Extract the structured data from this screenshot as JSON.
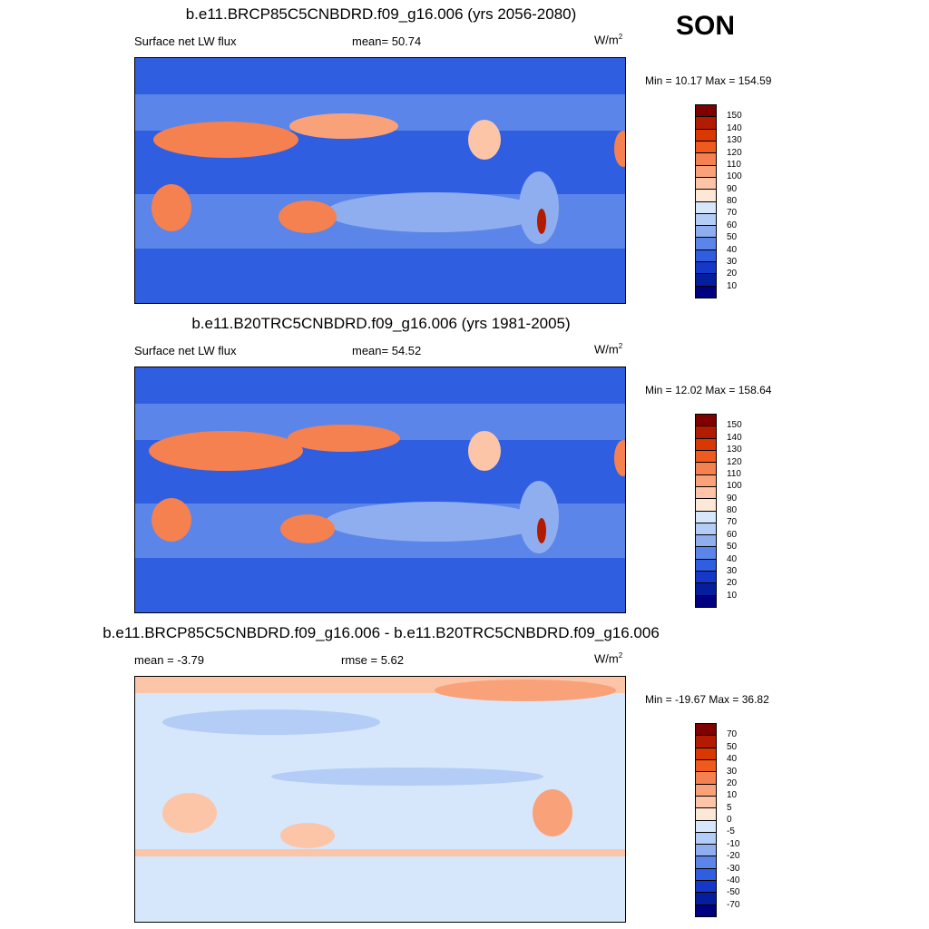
{
  "season": "SON",
  "panels": [
    {
      "title": "b.e11.BRCP85C5CNBDRD.f09_g16.006 (yrs 2056-2080)",
      "left_label": "Surface net LW flux",
      "mid_label": "mean=  50.74",
      "units": "W/m",
      "units_sup": "2",
      "minmax": "Min =  10.17 Max = 154.59",
      "colorbar_ticks": [
        "150",
        "140",
        "130",
        "120",
        "110",
        "100",
        "90",
        "80",
        "70",
        "60",
        "50",
        "40",
        "30",
        "20",
        "10"
      ],
      "colorbar_colors": [
        "#7f0000",
        "#b31b00",
        "#d93800",
        "#f05a1f",
        "#f58050",
        "#f9a27a",
        "#fcc5a8",
        "#fde8d8",
        "#d6e6fb",
        "#b3cdf7",
        "#8eaef0",
        "#5b85e8",
        "#2f5fe0",
        "#1538c8",
        "#051e9e",
        "#000080"
      ]
    },
    {
      "title": "b.e11.B20TRC5CNBDRD.f09_g16.006 (yrs 1981-2005)",
      "left_label": "Surface net LW flux",
      "mid_label": "mean=  54.52",
      "units": "W/m",
      "units_sup": "2",
      "minmax": "Min =  12.02 Max = 158.64",
      "colorbar_ticks": [
        "150",
        "140",
        "130",
        "120",
        "110",
        "100",
        "90",
        "80",
        "70",
        "60",
        "50",
        "40",
        "30",
        "20",
        "10"
      ],
      "colorbar_colors": [
        "#7f0000",
        "#b31b00",
        "#d93800",
        "#f05a1f",
        "#f58050",
        "#f9a27a",
        "#fcc5a8",
        "#fde8d8",
        "#d6e6fb",
        "#b3cdf7",
        "#8eaef0",
        "#5b85e8",
        "#2f5fe0",
        "#1538c8",
        "#051e9e",
        "#000080"
      ]
    },
    {
      "title": "b.e11.BRCP85C5CNBDRD.f09_g16.006 - b.e11.B20TRC5CNBDRD.f09_g16.006",
      "left_label": "mean =  -3.79",
      "mid_label": "rmse =   5.62",
      "units": "W/m",
      "units_sup": "2",
      "minmax": "Min = -19.67 Max =  36.82",
      "colorbar_ticks": [
        "70",
        "50",
        "40",
        "30",
        "20",
        "10",
        "5",
        "0",
        "-5",
        "-10",
        "-20",
        "-30",
        "-40",
        "-50",
        "-70"
      ],
      "colorbar_colors": [
        "#7f0000",
        "#b31b00",
        "#d93800",
        "#f05a1f",
        "#f58050",
        "#f9a27a",
        "#fcc5a8",
        "#fde8d8",
        "#d6e6fb",
        "#b3cdf7",
        "#8eaef0",
        "#5b85e8",
        "#2f5fe0",
        "#1538c8",
        "#051e9e",
        "#000080"
      ]
    }
  ],
  "map_colors": {
    "ocean_dark": "#2f5fe0",
    "ocean_mid": "#5b85e8",
    "ocean_light": "#8eaef0",
    "land_hot": "#f58050",
    "land_warm": "#f9a27a",
    "land_pale": "#fcc5a8",
    "land_max": "#b31b00",
    "diff_base": "#d6e6fb",
    "diff_blue": "#b3cdf7",
    "diff_warm": "#fcc5a8",
    "diff_hot": "#f9a27a"
  }
}
